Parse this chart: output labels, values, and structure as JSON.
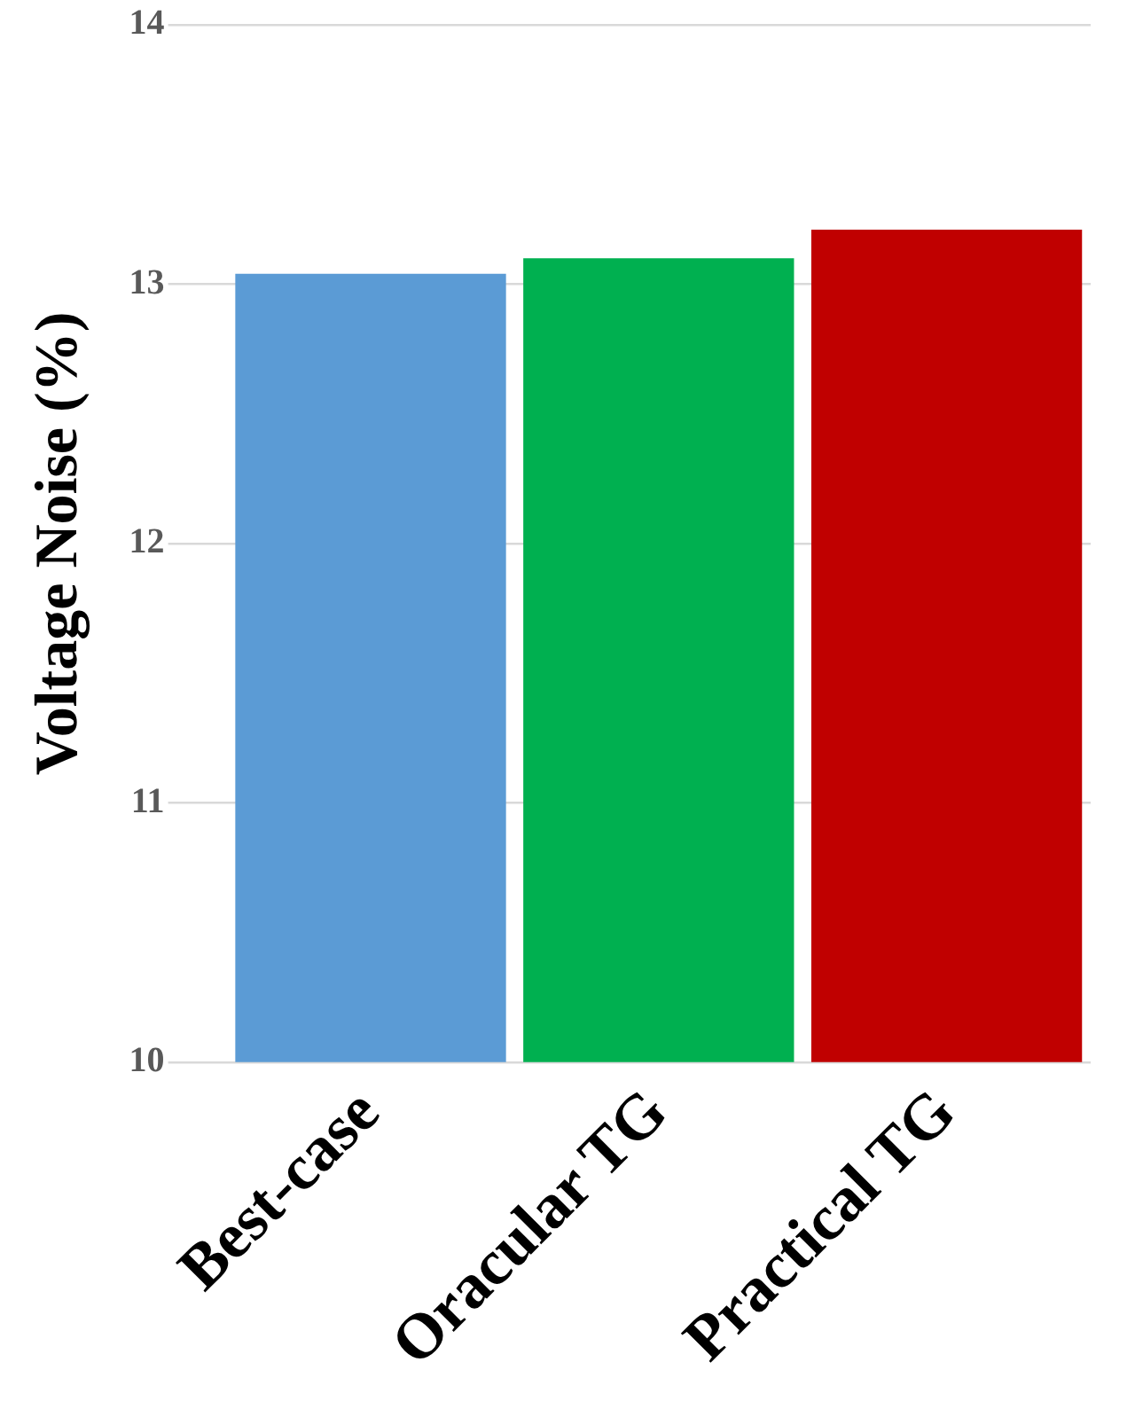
{
  "chart_data": {
    "type": "bar",
    "ylabel": "Voltage Noise (%)",
    "categories": [
      "Best-case",
      "Oracular TG",
      "Practical TG"
    ],
    "values": [
      13.04,
      13.1,
      13.21
    ],
    "colors": [
      "#5b9bd5",
      "#00b050",
      "#c00000"
    ],
    "ylim": [
      10,
      14
    ],
    "yticks": [
      10,
      11,
      12,
      13,
      14
    ],
    "grid": "y"
  }
}
